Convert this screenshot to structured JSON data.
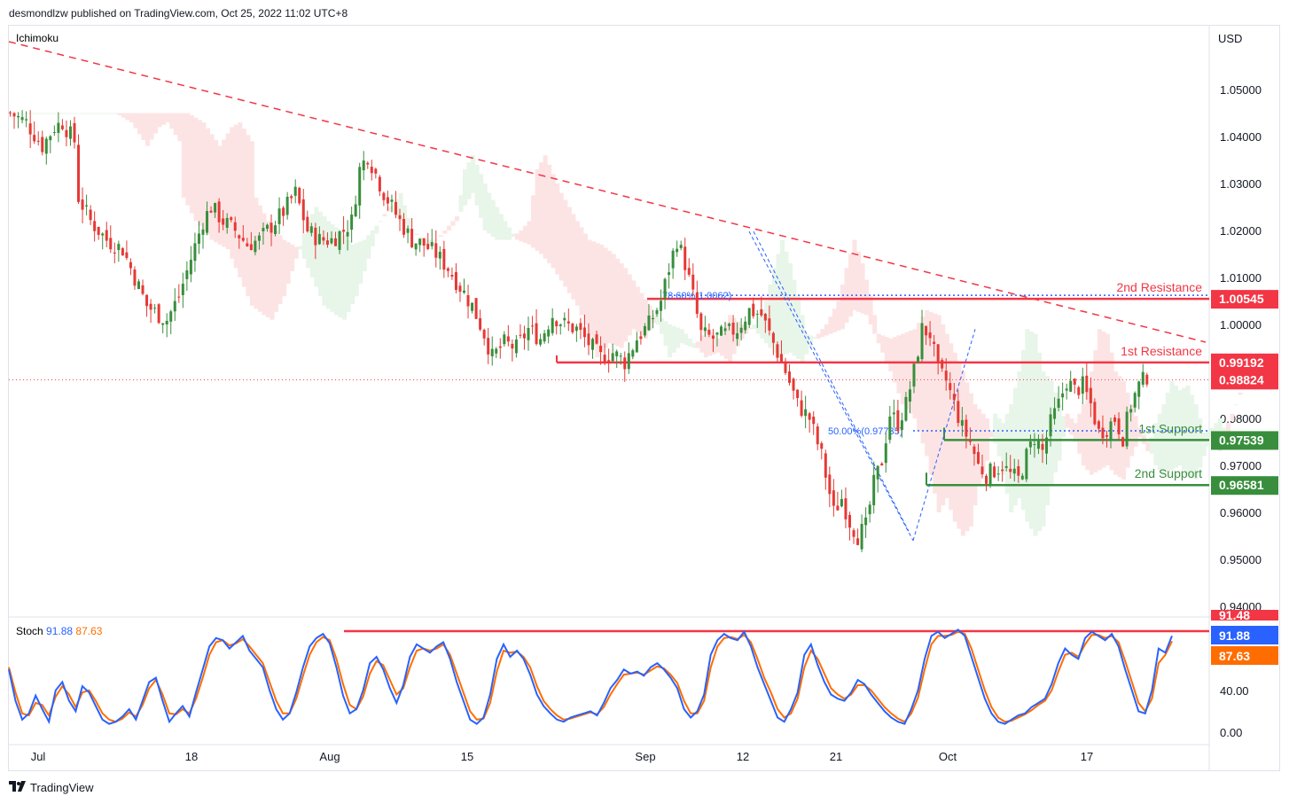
{
  "header": {
    "publisher": "desmondlzw published on TradingView.com, Oct 25, 2022 11:02 UTC+8"
  },
  "footer": {
    "brand": "TradingView",
    "logo": "tradingview-logo-icon"
  },
  "colors": {
    "up": "#26a69a",
    "down": "#ef5350",
    "upCandle": "#388e3c",
    "downCandle": "#e53935",
    "resistance": "#f23645",
    "support": "#388e3c",
    "stochK": "#2962ff",
    "stochD": "#ff6d00",
    "trend": "#f23645",
    "fib": "#2962ff",
    "cloudBull": "#e8f5e9",
    "cloudBear": "#fde4e4"
  },
  "chart_data": [
    {
      "type": "candlestick",
      "title": "Ichimoku",
      "currency": "USD",
      "ylim": [
        0.935,
        1.062
      ],
      "yticks": [
        "1.05000",
        "1.04000",
        "1.03000",
        "1.02000",
        "1.01000",
        "1.00000",
        "0.99000",
        "0.98000",
        "0.97000",
        "0.96000",
        "0.95000",
        "0.94000"
      ],
      "xticks": [
        "Jul",
        "18",
        "Aug",
        "15",
        "Sep",
        "12",
        "21",
        "Oct",
        "17"
      ],
      "levels": [
        {
          "name": "2nd Resistance",
          "value": 1.00545,
          "tag": "1.00545",
          "kind": "resistance"
        },
        {
          "name": "1st Resistance",
          "value": 0.99192,
          "tag": "0.99192",
          "kind": "resistance"
        },
        {
          "name": "1st Support",
          "value": 0.97539,
          "tag": "0.97539",
          "kind": "support"
        },
        {
          "name": "2nd Support",
          "value": 0.96581,
          "tag": "0.96581",
          "kind": "support"
        }
      ],
      "last_price": {
        "value": 0.98824,
        "tag": "0.98824"
      },
      "fib": [
        {
          "label": "78.60%(1.0062)",
          "value": 1.0062
        },
        {
          "label": "50.00%(0.97735)",
          "value": 0.97735
        }
      ],
      "close_path": [
        [
          0,
          1.045
        ],
        [
          4,
          1.043
        ],
        [
          8,
          1.038
        ],
        [
          11,
          1.042
        ],
        [
          13,
          1.043
        ],
        [
          16,
          1.039
        ],
        [
          17,
          1.027
        ],
        [
          20,
          1.022
        ],
        [
          24,
          1.018
        ],
        [
          28,
          1.016
        ],
        [
          31,
          1.01
        ],
        [
          34,
          1.004
        ],
        [
          37,
          1.002
        ],
        [
          39,
          1.001
        ],
        [
          42,
          1.006
        ],
        [
          45,
          1.014
        ],
        [
          48,
          1.022
        ],
        [
          50,
          1.025
        ],
        [
          53,
          1.022
        ],
        [
          56,
          1.02
        ],
        [
          59,
          1.017
        ],
        [
          62,
          1.018
        ],
        [
          65,
          1.021
        ],
        [
          68,
          1.024
        ],
        [
          71,
          1.028
        ],
        [
          74,
          1.02
        ],
        [
          77,
          1.018
        ],
        [
          80,
          1.018
        ],
        [
          83,
          1.02
        ],
        [
          85,
          1.022
        ],
        [
          87,
          1.033
        ],
        [
          89,
          1.036
        ],
        [
          91,
          1.032
        ],
        [
          93,
          1.028
        ],
        [
          95,
          1.025
        ],
        [
          97,
          1.022
        ],
        [
          100,
          1.018
        ],
        [
          103,
          1.017
        ],
        [
          106,
          1.015
        ],
        [
          109,
          1.012
        ],
        [
          112,
          1.008
        ],
        [
          115,
          1.004
        ],
        [
          118,
          0.998
        ],
        [
          120,
          0.993
        ],
        [
          123,
          0.996
        ],
        [
          126,
          0.995
        ],
        [
          129,
          0.999
        ],
        [
          132,
          0.997
        ],
        [
          135,
          1.002
        ],
        [
          138,
          1.0
        ],
        [
          141,
          0.999
        ],
        [
          144,
          0.996
        ],
        [
          147,
          0.993
        ],
        [
          150,
          0.994
        ],
        [
          153,
          0.992
        ],
        [
          156,
          0.997
        ],
        [
          159,
          1.0
        ],
        [
          162,
          1.005
        ],
        [
          164,
          1.012
        ],
        [
          166,
          1.018
        ],
        [
          168,
          1.013
        ],
        [
          170,
          1.006
        ],
        [
          172,
          0.998
        ],
        [
          175,
          0.997
        ],
        [
          178,
          0.998
        ],
        [
          181,
          0.999
        ],
        [
          184,
          1.003
        ],
        [
          187,
          1.002
        ],
        [
          190,
          0.996
        ],
        [
          193,
          0.99
        ],
        [
          196,
          0.983
        ],
        [
          199,
          0.98
        ],
        [
          202,
          0.972
        ],
        [
          205,
          0.96
        ],
        [
          207,
          0.963
        ],
        [
          209,
          0.958
        ],
        [
          211,
          0.955
        ],
        [
          213,
          0.957
        ],
        [
          215,
          0.966
        ],
        [
          217,
          0.971
        ],
        [
          219,
          0.981
        ],
        [
          221,
          0.979
        ],
        [
          223,
          0.983
        ],
        [
          225,
          0.99
        ],
        [
          227,
          0.999
        ],
        [
          229,
          0.998
        ],
        [
          231,
          0.99
        ],
        [
          233,
          0.988
        ],
        [
          235,
          0.983
        ],
        [
          237,
          0.978
        ],
        [
          239,
          0.975
        ],
        [
          241,
          0.97
        ],
        [
          243,
          0.968
        ],
        [
          245,
          0.969
        ],
        [
          247,
          0.97
        ],
        [
          249,
          0.968
        ],
        [
          251,
          0.967
        ],
        [
          253,
          0.972
        ],
        [
          255,
          0.976
        ],
        [
          257,
          0.973
        ],
        [
          259,
          0.979
        ],
        [
          261,
          0.983
        ],
        [
          263,
          0.988
        ],
        [
          265,
          0.986
        ],
        [
          267,
          0.987
        ],
        [
          269,
          0.983
        ],
        [
          271,
          0.977
        ],
        [
          273,
          0.978
        ],
        [
          275,
          0.98
        ],
        [
          277,
          0.976
        ],
        [
          279,
          0.983
        ],
        [
          281,
          0.987
        ],
        [
          283,
          0.989
        ]
      ]
    },
    {
      "type": "line",
      "title": "Stoch",
      "k_label": "91.88",
      "d_label": "87.63",
      "ylim": [
        0,
        100
      ],
      "yticks": [
        "40.00",
        "0.00"
      ],
      "overbought_tag": "91.48",
      "k_tag": "91.88",
      "d_tag": "87.63",
      "series": [
        {
          "values": [
            60,
            30,
            12,
            18,
            35,
            22,
            10,
            40,
            48,
            30,
            20,
            44,
            38,
            25,
            12,
            8,
            10,
            15,
            22,
            12,
            30,
            48,
            52,
            30,
            10,
            18,
            25,
            15,
            38,
            60,
            82,
            90,
            88,
            80,
            86,
            92,
            78,
            70,
            62,
            40,
            22,
            12,
            18,
            38,
            62,
            82,
            90,
            94,
            85,
            62,
            35,
            18,
            22,
            40,
            66,
            72,
            60,
            42,
            28,
            45,
            72,
            84,
            80,
            76,
            82,
            86,
            70,
            48,
            30,
            12,
            8,
            14,
            36,
            70,
            84,
            72,
            78,
            70,
            55,
            36,
            25,
            18,
            12,
            10,
            14,
            16,
            18,
            20,
            16,
            28,
            42,
            50,
            60,
            56,
            58,
            54,
            62,
            66,
            60,
            52,
            42,
            22,
            14,
            20,
            36,
            74,
            88,
            94,
            90,
            88,
            96,
            82,
            62,
            46,
            30,
            14,
            10,
            22,
            38,
            74,
            84,
            64,
            48,
            36,
            32,
            30,
            38,
            50,
            46,
            36,
            28,
            20,
            14,
            10,
            8,
            22,
            40,
            70,
            92,
            96,
            90,
            94,
            98,
            92,
            72,
            52,
            32,
            18,
            10,
            8,
            12,
            16,
            18,
            24,
            28,
            32,
            46,
            66,
            80,
            74,
            70,
            90,
            96,
            92,
            88,
            94,
            82,
            60,
            40,
            20,
            18,
            40,
            80,
            76,
            92
          ]
        },
        {
          "values": [
            62,
            38,
            18,
            16,
            28,
            26,
            16,
            34,
            44,
            36,
            24,
            38,
            40,
            30,
            18,
            12,
            10,
            13,
            19,
            15,
            26,
            42,
            50,
            36,
            18,
            17,
            22,
            18,
            32,
            52,
            74,
            86,
            88,
            83,
            85,
            89,
            82,
            74,
            66,
            48,
            30,
            18,
            18,
            32,
            54,
            74,
            86,
            91,
            88,
            70,
            46,
            26,
            22,
            34,
            56,
            68,
            64,
            50,
            36,
            42,
            62,
            78,
            80,
            78,
            80,
            84,
            74,
            56,
            38,
            20,
            12,
            13,
            28,
            58,
            78,
            76,
            77,
            72,
            62,
            44,
            30,
            22,
            16,
            12,
            13,
            15,
            17,
            19,
            17,
            24,
            36,
            46,
            55,
            56,
            57,
            55,
            59,
            63,
            61,
            55,
            47,
            30,
            18,
            18,
            30,
            62,
            82,
            90,
            91,
            89,
            93,
            86,
            70,
            52,
            38,
            22,
            14,
            18,
            32,
            62,
            78,
            70,
            56,
            42,
            36,
            32,
            36,
            45,
            45,
            40,
            32,
            24,
            18,
            13,
            10,
            18,
            33,
            60,
            84,
            92,
            92,
            93,
            96,
            94,
            80,
            60,
            40,
            24,
            14,
            10,
            11,
            14,
            17,
            21,
            26,
            30,
            40,
            58,
            74,
            76,
            72,
            84,
            93,
            93,
            90,
            92,
            86,
            68,
            48,
            28,
            20,
            32,
            66,
            74,
            87
          ]
        }
      ]
    }
  ]
}
